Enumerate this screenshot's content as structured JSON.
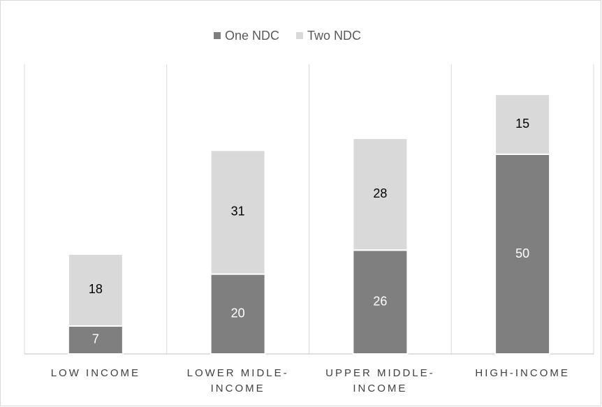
{
  "chart_data": {
    "type": "stacked-bar",
    "categories": [
      "LOW INCOME",
      "LOWER MIDLE-INCOME",
      "UPPER MIDDLE-INCOME",
      "HIGH-INCOME"
    ],
    "series": [
      {
        "name": "One NDC",
        "color": "#7f7f7f",
        "values": [
          7,
          20,
          26,
          50
        ]
      },
      {
        "name": "Two NDC",
        "color": "#d9d9d9",
        "values": [
          18,
          31,
          28,
          15
        ]
      }
    ],
    "legend": "top"
  }
}
